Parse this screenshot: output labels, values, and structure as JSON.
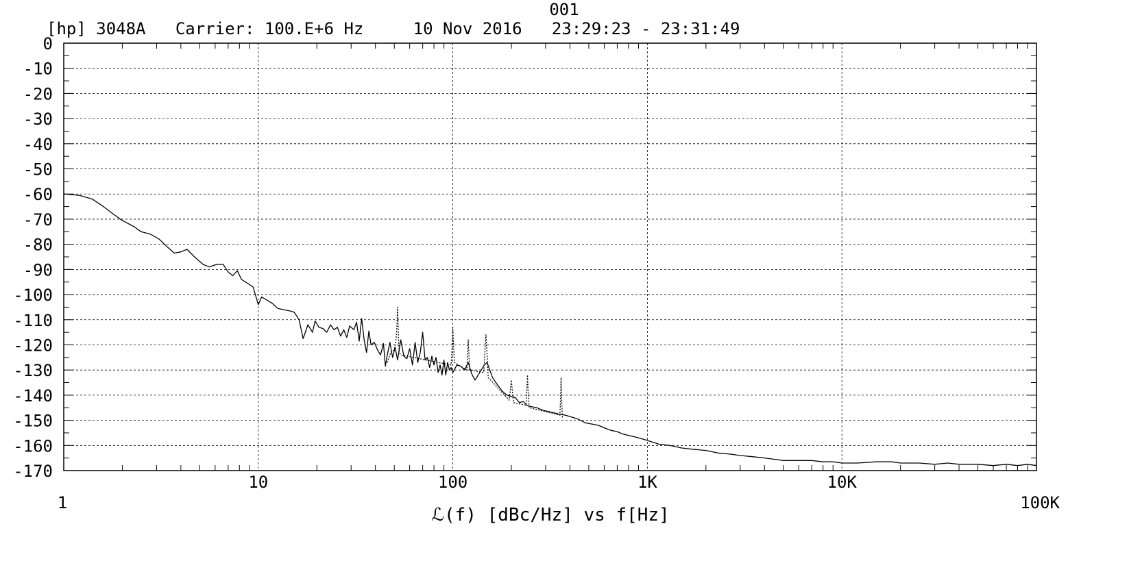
{
  "header": {
    "id": "001",
    "info": "[hp] 3048A   Carrier: 100.E+6 Hz     10 Nov 2016   23:29:23 - 23:31:49"
  },
  "chart_data": {
    "type": "line",
    "title": "001",
    "xlabel": "ℒ(f) [dBc/Hz] vs f[Hz]",
    "ylabel": "",
    "x_scale": "log",
    "xlim": [
      1,
      100000
    ],
    "ylim": [
      -170,
      0
    ],
    "grid": true,
    "x_tick_labels": [
      {
        "value": 1,
        "label": "1"
      },
      {
        "value": 10,
        "label": "10"
      },
      {
        "value": 100,
        "label": "100"
      },
      {
        "value": 1000,
        "label": "1K"
      },
      {
        "value": 10000,
        "label": "10K"
      },
      {
        "value": 100000,
        "label": "100K"
      }
    ],
    "y_tick_labels": [
      {
        "value": 0,
        "label": "0"
      },
      {
        "value": -10,
        "label": "-10"
      },
      {
        "value": -20,
        "label": "-20"
      },
      {
        "value": -30,
        "label": "-30"
      },
      {
        "value": -40,
        "label": "-40"
      },
      {
        "value": -50,
        "label": "-50"
      },
      {
        "value": -60,
        "label": "-60"
      },
      {
        "value": -70,
        "label": "-70"
      },
      {
        "value": -80,
        "label": "-80"
      },
      {
        "value": -90,
        "label": "-90"
      },
      {
        "value": -100,
        "label": "-100"
      },
      {
        "value": -110,
        "label": "-110"
      },
      {
        "value": -120,
        "label": "-120"
      },
      {
        "value": -130,
        "label": "-130"
      },
      {
        "value": -140,
        "label": "-140"
      },
      {
        "value": -150,
        "label": "-150"
      },
      {
        "value": -160,
        "label": "-160"
      },
      {
        "value": -170,
        "label": "-170"
      }
    ],
    "series": [
      {
        "style": "solid",
        "color": "#000000",
        "points": [
          [
            1,
            -60
          ],
          [
            1.2,
            -60.5
          ],
          [
            1.4,
            -62
          ],
          [
            1.6,
            -65
          ],
          [
            1.8,
            -68
          ],
          [
            2,
            -70.5
          ],
          [
            2.3,
            -73
          ],
          [
            2.5,
            -75
          ],
          [
            2.8,
            -76
          ],
          [
            3.1,
            -78
          ],
          [
            3.4,
            -81
          ],
          [
            3.7,
            -83.5
          ],
          [
            4,
            -83
          ],
          [
            4.3,
            -82
          ],
          [
            4.7,
            -85
          ],
          [
            5.2,
            -88
          ],
          [
            5.6,
            -89
          ],
          [
            6.1,
            -88
          ],
          [
            6.6,
            -88
          ],
          [
            7,
            -91
          ],
          [
            7.4,
            -92.5
          ],
          [
            7.8,
            -90.5
          ],
          [
            8.2,
            -94
          ],
          [
            8.8,
            -95.5
          ],
          [
            9.4,
            -97
          ],
          [
            10,
            -104
          ],
          [
            10.4,
            -101
          ],
          [
            11,
            -102
          ],
          [
            11.8,
            -103.5
          ],
          [
            12.6,
            -105.5
          ],
          [
            13.5,
            -106
          ],
          [
            14.5,
            -106.5
          ],
          [
            15.3,
            -107
          ],
          [
            16.2,
            -110
          ],
          [
            17,
            -117.5
          ],
          [
            18,
            -112
          ],
          [
            19,
            -115
          ],
          [
            19.6,
            -110.5
          ],
          [
            20.5,
            -113
          ],
          [
            21.5,
            -113.5
          ],
          [
            22.5,
            -115
          ],
          [
            23.5,
            -112
          ],
          [
            24.5,
            -114
          ],
          [
            25.5,
            -113
          ],
          [
            26.5,
            -116.5
          ],
          [
            27.5,
            -114
          ],
          [
            28.5,
            -117
          ],
          [
            29.5,
            -112.5
          ],
          [
            31,
            -114
          ],
          [
            32,
            -111
          ],
          [
            33,
            -118.5
          ],
          [
            34,
            -109.5
          ],
          [
            35,
            -118
          ],
          [
            36,
            -123
          ],
          [
            37,
            -114.5
          ],
          [
            38,
            -120
          ],
          [
            39.5,
            -119
          ],
          [
            41,
            -122
          ],
          [
            42.5,
            -124
          ],
          [
            44,
            -119.5
          ],
          [
            45,
            -128.5
          ],
          [
            46,
            -124
          ],
          [
            47.5,
            -119
          ],
          [
            49,
            -125
          ],
          [
            50.5,
            -121
          ],
          [
            52,
            -126
          ],
          [
            54,
            -118
          ],
          [
            56,
            -124.5
          ],
          [
            58,
            -125.5
          ],
          [
            60,
            -121.5
          ],
          [
            62,
            -128
          ],
          [
            64,
            -119
          ],
          [
            66,
            -127
          ],
          [
            68,
            -123
          ],
          [
            70,
            -115
          ],
          [
            72,
            -126
          ],
          [
            74,
            -125
          ],
          [
            76,
            -129
          ],
          [
            78,
            -124.5
          ],
          [
            80,
            -128
          ],
          [
            82,
            -125
          ],
          [
            84,
            -131
          ],
          [
            86,
            -128
          ],
          [
            88,
            -132
          ],
          [
            90,
            -126
          ],
          [
            92,
            -132
          ],
          [
            94,
            -127
          ],
          [
            96,
            -130
          ],
          [
            98,
            -129
          ],
          [
            100,
            -131
          ],
          [
            105,
            -128
          ],
          [
            110,
            -128.5
          ],
          [
            115,
            -130
          ],
          [
            120,
            -127
          ],
          [
            125,
            -131.5
          ],
          [
            130,
            -134
          ],
          [
            135,
            -132
          ],
          [
            140,
            -130
          ],
          [
            145,
            -128
          ],
          [
            150,
            -127
          ],
          [
            160,
            -133
          ],
          [
            170,
            -136
          ],
          [
            180,
            -138.5
          ],
          [
            190,
            -140
          ],
          [
            200,
            -140.5
          ],
          [
            210,
            -141
          ],
          [
            220,
            -143
          ],
          [
            230,
            -142.5
          ],
          [
            240,
            -144
          ],
          [
            250,
            -144.5
          ],
          [
            270,
            -145
          ],
          [
            290,
            -146
          ],
          [
            310,
            -146.5
          ],
          [
            330,
            -147
          ],
          [
            350,
            -147.5
          ],
          [
            380,
            -148
          ],
          [
            400,
            -148.5
          ],
          [
            440,
            -149.5
          ],
          [
            480,
            -151
          ],
          [
            520,
            -151.5
          ],
          [
            560,
            -152
          ],
          [
            600,
            -153
          ],
          [
            650,
            -154
          ],
          [
            700,
            -154.5
          ],
          [
            750,
            -155.5
          ],
          [
            800,
            -156
          ],
          [
            850,
            -156.5
          ],
          [
            900,
            -157
          ],
          [
            950,
            -157.5
          ],
          [
            1000,
            -158
          ],
          [
            1150,
            -159.5
          ],
          [
            1300,
            -160
          ],
          [
            1500,
            -161
          ],
          [
            1700,
            -161.5
          ],
          [
            2000,
            -162
          ],
          [
            2300,
            -163
          ],
          [
            2700,
            -163.5
          ],
          [
            3000,
            -164
          ],
          [
            3500,
            -164.5
          ],
          [
            4000,
            -165
          ],
          [
            4500,
            -165.5
          ],
          [
            5000,
            -166
          ],
          [
            6000,
            -166
          ],
          [
            7000,
            -166
          ],
          [
            8000,
            -166.5
          ],
          [
            9000,
            -166.5
          ],
          [
            10000,
            -167
          ],
          [
            12000,
            -167
          ],
          [
            15000,
            -166.5
          ],
          [
            18000,
            -166.5
          ],
          [
            20000,
            -167
          ],
          [
            25000,
            -167
          ],
          [
            30000,
            -167.5
          ],
          [
            35000,
            -167
          ],
          [
            40000,
            -167.5
          ],
          [
            50000,
            -167.5
          ],
          [
            60000,
            -168
          ],
          [
            70000,
            -167.5
          ],
          [
            80000,
            -168
          ],
          [
            90000,
            -167.5
          ],
          [
            100000,
            -168
          ]
        ]
      },
      {
        "style": "dotted",
        "color": "#000000",
        "points": [
          [
            46,
            -127
          ],
          [
            48,
            -123
          ],
          [
            50,
            -122
          ],
          [
            51,
            -118
          ],
          [
            51.5,
            -114
          ],
          [
            52,
            -105
          ],
          [
            52.5,
            -116
          ],
          [
            53,
            -123
          ],
          [
            54,
            -124
          ],
          [
            98,
            -128
          ],
          [
            99,
            -122
          ],
          [
            100,
            -113
          ],
          [
            101,
            -121
          ],
          [
            102,
            -127
          ],
          [
            118,
            -130
          ],
          [
            119,
            -124
          ],
          [
            120,
            -118
          ],
          [
            121,
            -124
          ],
          [
            122,
            -130
          ],
          [
            144,
            -131
          ],
          [
            146,
            -124
          ],
          [
            148,
            -116
          ],
          [
            150,
            -124
          ],
          [
            152,
            -133
          ],
          [
            195,
            -142
          ],
          [
            198,
            -137
          ],
          [
            200,
            -134
          ],
          [
            202,
            -138
          ],
          [
            205,
            -143
          ],
          [
            238,
            -144
          ],
          [
            240,
            -138
          ],
          [
            242,
            -132
          ],
          [
            244,
            -139
          ],
          [
            247,
            -145
          ],
          [
            355,
            -148
          ],
          [
            358,
            -141
          ],
          [
            360,
            -133
          ],
          [
            362,
            -141
          ],
          [
            366,
            -149
          ]
        ]
      }
    ]
  }
}
